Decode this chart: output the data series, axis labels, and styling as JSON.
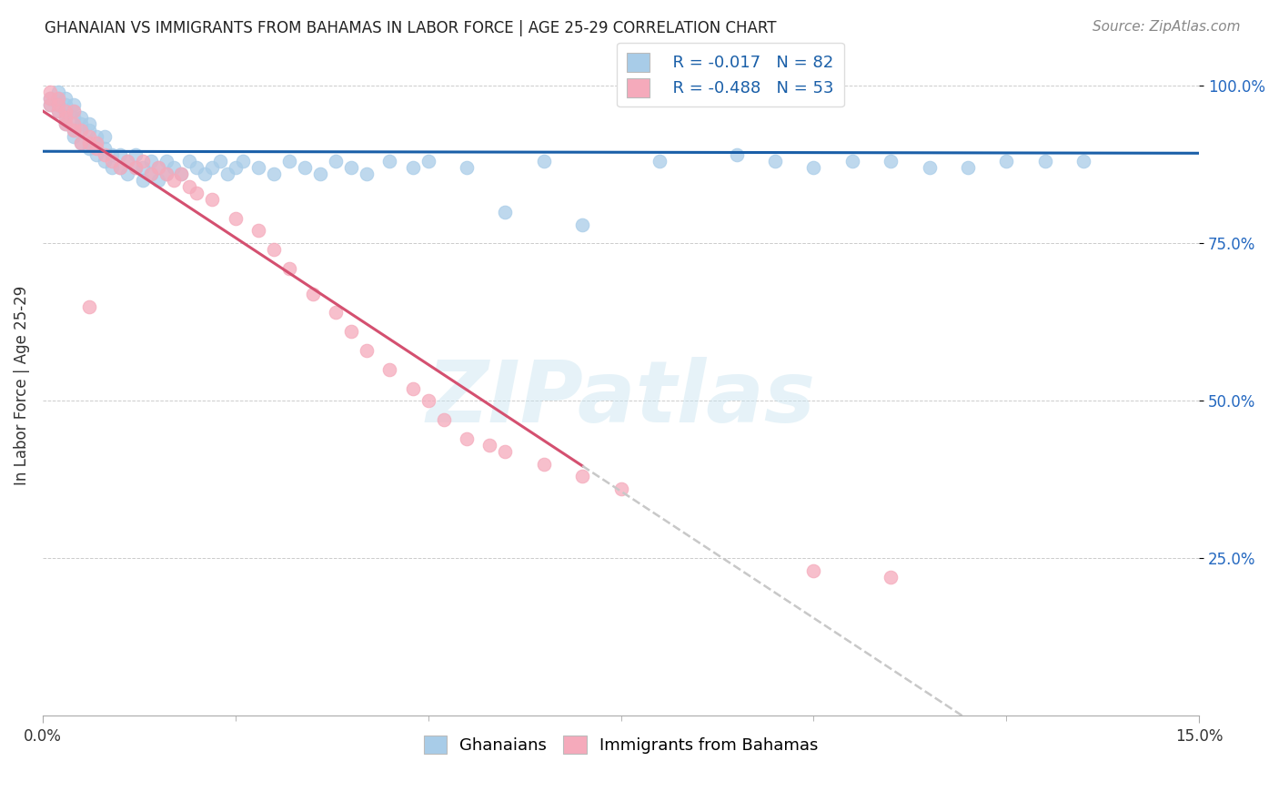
{
  "title": "GHANAIAN VS IMMIGRANTS FROM BAHAMAS IN LABOR FORCE | AGE 25-29 CORRELATION CHART",
  "source": "Source: ZipAtlas.com",
  "ylabel": "In Labor Force | Age 25-29",
  "xmin": 0.0,
  "xmax": 0.15,
  "ymin": 0.0,
  "ymax": 1.0,
  "blue_R": "-0.017",
  "blue_N": "82",
  "pink_R": "-0.488",
  "pink_N": "53",
  "blue_color": "#A8CCE8",
  "pink_color": "#F5AABB",
  "trendline_blue_color": "#1A5FA8",
  "trendline_pink_color": "#D45070",
  "watermark": "ZIPatlas",
  "blue_scatter_x": [
    0.001,
    0.001,
    0.002,
    0.002,
    0.002,
    0.002,
    0.003,
    0.003,
    0.003,
    0.003,
    0.003,
    0.004,
    0.004,
    0.004,
    0.004,
    0.004,
    0.005,
    0.005,
    0.005,
    0.005,
    0.006,
    0.006,
    0.006,
    0.006,
    0.007,
    0.007,
    0.007,
    0.008,
    0.008,
    0.008,
    0.009,
    0.009,
    0.01,
    0.01,
    0.011,
    0.011,
    0.012,
    0.012,
    0.013,
    0.013,
    0.014,
    0.014,
    0.015,
    0.015,
    0.016,
    0.016,
    0.017,
    0.018,
    0.019,
    0.02,
    0.021,
    0.022,
    0.023,
    0.024,
    0.025,
    0.026,
    0.028,
    0.03,
    0.032,
    0.034,
    0.036,
    0.038,
    0.04,
    0.042,
    0.045,
    0.048,
    0.05,
    0.055,
    0.06,
    0.065,
    0.07,
    0.08,
    0.09,
    0.095,
    0.1,
    0.105,
    0.11,
    0.115,
    0.12,
    0.125,
    0.13,
    0.135
  ],
  "blue_scatter_y": [
    0.97,
    0.98,
    0.96,
    0.97,
    0.98,
    0.99,
    0.94,
    0.95,
    0.96,
    0.97,
    0.98,
    0.92,
    0.93,
    0.95,
    0.96,
    0.97,
    0.91,
    0.93,
    0.94,
    0.95,
    0.9,
    0.91,
    0.93,
    0.94,
    0.89,
    0.91,
    0.92,
    0.88,
    0.9,
    0.92,
    0.87,
    0.89,
    0.87,
    0.89,
    0.86,
    0.88,
    0.87,
    0.89,
    0.85,
    0.87,
    0.86,
    0.88,
    0.85,
    0.87,
    0.86,
    0.88,
    0.87,
    0.86,
    0.88,
    0.87,
    0.86,
    0.87,
    0.88,
    0.86,
    0.87,
    0.88,
    0.87,
    0.86,
    0.88,
    0.87,
    0.86,
    0.88,
    0.87,
    0.86,
    0.88,
    0.87,
    0.88,
    0.87,
    0.8,
    0.88,
    0.78,
    0.88,
    0.89,
    0.88,
    0.87,
    0.88,
    0.88,
    0.87,
    0.87,
    0.88,
    0.88,
    0.88
  ],
  "pink_scatter_x": [
    0.001,
    0.001,
    0.001,
    0.002,
    0.002,
    0.002,
    0.003,
    0.003,
    0.003,
    0.004,
    0.004,
    0.004,
    0.005,
    0.005,
    0.006,
    0.006,
    0.006,
    0.007,
    0.007,
    0.008,
    0.009,
    0.01,
    0.011,
    0.012,
    0.013,
    0.014,
    0.015,
    0.016,
    0.017,
    0.018,
    0.019,
    0.02,
    0.022,
    0.025,
    0.028,
    0.03,
    0.032,
    0.035,
    0.038,
    0.04,
    0.042,
    0.045,
    0.048,
    0.05,
    0.052,
    0.055,
    0.058,
    0.06,
    0.065,
    0.07,
    0.075,
    0.1,
    0.11
  ],
  "pink_scatter_y": [
    0.97,
    0.98,
    0.99,
    0.96,
    0.97,
    0.98,
    0.94,
    0.95,
    0.96,
    0.93,
    0.94,
    0.96,
    0.91,
    0.93,
    0.65,
    0.91,
    0.92,
    0.9,
    0.91,
    0.89,
    0.88,
    0.87,
    0.88,
    0.87,
    0.88,
    0.86,
    0.87,
    0.86,
    0.85,
    0.86,
    0.84,
    0.83,
    0.82,
    0.79,
    0.77,
    0.74,
    0.71,
    0.67,
    0.64,
    0.61,
    0.58,
    0.55,
    0.52,
    0.5,
    0.47,
    0.44,
    0.43,
    0.42,
    0.4,
    0.38,
    0.36,
    0.23,
    0.22
  ]
}
